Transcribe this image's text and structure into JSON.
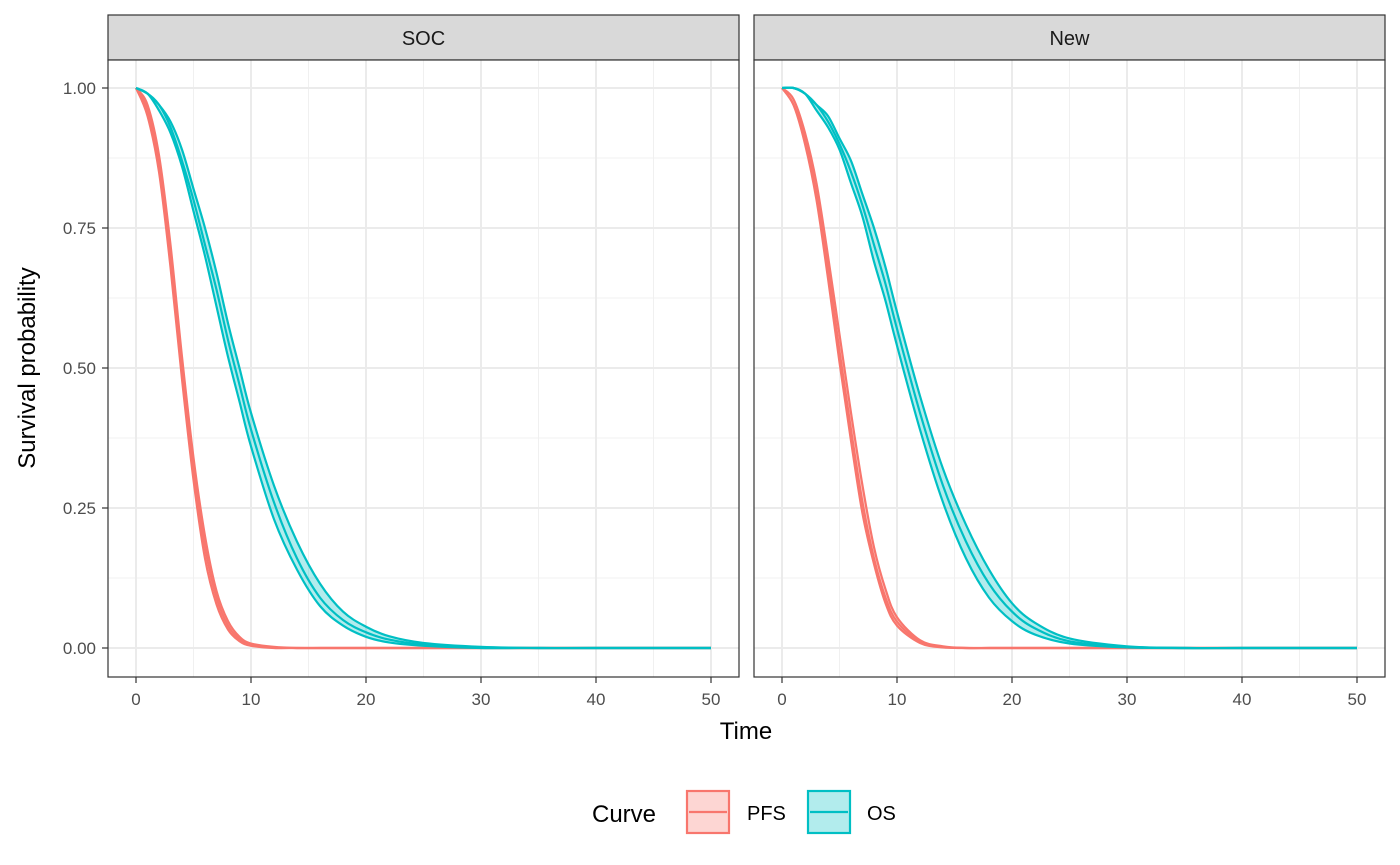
{
  "chart_data": {
    "type": "line",
    "xlabel": "Time",
    "ylabel": "Survival probability",
    "xlim": [
      0,
      50
    ],
    "ylim": [
      0,
      1
    ],
    "x_ticks": [
      "0",
      "10",
      "20",
      "30",
      "40",
      "50"
    ],
    "y_ticks": [
      "0.00",
      "0.25",
      "0.50",
      "0.75",
      "1.00"
    ],
    "grid": true,
    "legend": {
      "title": "Curve",
      "position": "bottom",
      "entries": [
        "PFS",
        "OS"
      ]
    },
    "x": [
      0,
      1,
      2,
      3,
      4,
      5,
      6,
      7,
      8,
      9,
      10,
      12,
      14,
      16,
      18,
      20,
      22,
      25,
      30,
      35,
      40,
      50
    ],
    "panels": [
      {
        "title": "SOC",
        "series": [
          {
            "name": "PFS",
            "color": "#F8766D",
            "values": [
              1.0,
              0.96,
              0.86,
              0.7,
              0.5,
              0.32,
              0.18,
              0.09,
              0.04,
              0.016,
              0.006,
              0.001,
              0.0,
              0.0,
              0.0,
              0.0,
              0.0,
              0.0,
              0.0,
              0.0,
              0.0,
              0.0
            ],
            "lower": [
              1.0,
              0.95,
              0.85,
              0.68,
              0.48,
              0.3,
              0.16,
              0.078,
              0.033,
              0.012,
              0.004,
              0.0,
              0.0,
              0.0,
              0.0,
              0.0,
              0.0,
              0.0,
              0.0,
              0.0,
              0.0,
              0.0
            ],
            "upper": [
              1.0,
              0.97,
              0.88,
              0.72,
              0.52,
              0.34,
              0.2,
              0.102,
              0.048,
              0.02,
              0.008,
              0.002,
              0.0,
              0.0,
              0.0,
              0.0,
              0.0,
              0.0,
              0.0,
              0.0,
              0.0,
              0.0
            ]
          },
          {
            "name": "OS",
            "color": "#00BFC4",
            "values": [
              1.0,
              0.99,
              0.97,
              0.93,
              0.87,
              0.8,
              0.72,
              0.64,
              0.55,
              0.47,
              0.39,
              0.26,
              0.16,
              0.09,
              0.05,
              0.028,
              0.015,
              0.006,
              0.001,
              0.0,
              0.0,
              0.0
            ],
            "lower": [
              1.0,
              0.99,
              0.96,
              0.92,
              0.86,
              0.78,
              0.7,
              0.61,
              0.52,
              0.44,
              0.36,
              0.23,
              0.14,
              0.075,
              0.04,
              0.02,
              0.01,
              0.004,
              0.0,
              0.0,
              0.0,
              0.0
            ],
            "upper": [
              1.0,
              0.99,
              0.97,
              0.94,
              0.89,
              0.82,
              0.75,
              0.67,
              0.58,
              0.5,
              0.42,
              0.29,
              0.19,
              0.115,
              0.065,
              0.038,
              0.021,
              0.009,
              0.002,
              0.0,
              0.0,
              0.0
            ]
          }
        ]
      },
      {
        "title": "New",
        "series": [
          {
            "name": "PFS",
            "color": "#F8766D",
            "values": [
              1.0,
              0.97,
              0.91,
              0.81,
              0.68,
              0.53,
              0.39,
              0.26,
              0.16,
              0.09,
              0.047,
              0.011,
              0.002,
              0.0,
              0.0,
              0.0,
              0.0,
              0.0,
              0.0,
              0.0,
              0.0,
              0.0
            ],
            "lower": [
              1.0,
              0.97,
              0.9,
              0.8,
              0.66,
              0.51,
              0.37,
              0.24,
              0.15,
              0.08,
              0.04,
              0.009,
              0.001,
              0.0,
              0.0,
              0.0,
              0.0,
              0.0,
              0.0,
              0.0,
              0.0,
              0.0
            ],
            "upper": [
              1.0,
              0.98,
              0.92,
              0.83,
              0.7,
              0.56,
              0.42,
              0.29,
              0.18,
              0.105,
              0.055,
              0.014,
              0.003,
              0.0,
              0.0,
              0.0,
              0.0,
              0.0,
              0.0,
              0.0,
              0.0,
              0.0
            ]
          },
          {
            "name": "OS",
            "color": "#00BFC4",
            "values": [
              1.0,
              1.0,
              0.99,
              0.97,
              0.94,
              0.9,
              0.85,
              0.79,
              0.72,
              0.65,
              0.57,
              0.42,
              0.29,
              0.19,
              0.115,
              0.065,
              0.035,
              0.012,
              0.002,
              0.0,
              0.0,
              0.0
            ],
            "lower": [
              1.0,
              1.0,
              0.99,
              0.96,
              0.93,
              0.89,
              0.83,
              0.77,
              0.69,
              0.62,
              0.54,
              0.39,
              0.26,
              0.16,
              0.09,
              0.048,
              0.024,
              0.008,
              0.001,
              0.0,
              0.0,
              0.0
            ],
            "upper": [
              1.0,
              1.0,
              0.99,
              0.97,
              0.95,
              0.91,
              0.87,
              0.81,
              0.75,
              0.68,
              0.6,
              0.45,
              0.32,
              0.22,
              0.14,
              0.08,
              0.045,
              0.017,
              0.003,
              0.0,
              0.0,
              0.0
            ]
          }
        ]
      }
    ]
  }
}
